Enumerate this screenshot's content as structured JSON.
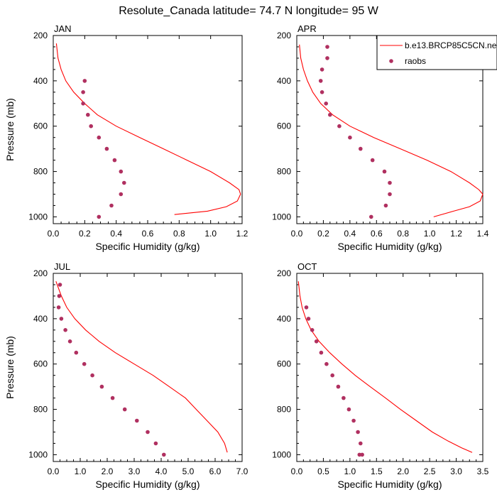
{
  "title": "Resolute_Canada  latitude= 74.7 N longitude= 95 W",
  "colors": {
    "model": "#ff0000",
    "raobs": "#b03060",
    "axis": "#000000"
  },
  "legend": {
    "placement": "top-right",
    "model_label": "b.e13.BRCP85C5CN.ne",
    "raobs_label": "raobs"
  },
  "chart_data": [
    {
      "type": "line",
      "panel": "JAN",
      "xlabel": "Specific Humidity (g/kg)",
      "ylabel": "Pressure (mb)",
      "xlim": [
        0,
        1.2
      ],
      "ylim": [
        1030,
        200
      ],
      "y_reversed": true,
      "xticks": [
        "0.0",
        "0.2",
        "0.4",
        "0.6",
        "0.8",
        "1.0",
        "1.2"
      ],
      "yticks": [
        "200",
        "400",
        "600",
        "800",
        "1000"
      ],
      "series": [
        {
          "name": "b.e13.BRCP85C5CN.ne",
          "kind": "line",
          "x": [
            0.02,
            0.03,
            0.05,
            0.08,
            0.13,
            0.2,
            0.28,
            0.4,
            0.55,
            0.7,
            0.85,
            1.0,
            1.12,
            1.18,
            1.19,
            1.17,
            1.1,
            0.98,
            0.77
          ],
          "y": [
            235,
            300,
            350,
            400,
            450,
            500,
            550,
            600,
            650,
            700,
            750,
            800,
            850,
            880,
            900,
            930,
            955,
            975,
            990
          ]
        },
        {
          "name": "raobs",
          "kind": "points",
          "x": [
            0.2,
            0.19,
            0.19,
            0.22,
            0.24,
            0.29,
            0.34,
            0.39,
            0.43,
            0.45,
            0.43,
            0.37,
            0.29
          ],
          "y": [
            400,
            450,
            500,
            550,
            600,
            650,
            700,
            750,
            800,
            850,
            900,
            950,
            1000
          ]
        }
      ]
    },
    {
      "type": "line",
      "panel": "APR",
      "xlabel": "Specific Humidity (g/kg)",
      "ylabel": "",
      "xlim": [
        0,
        1.4
      ],
      "ylim": [
        1030,
        200
      ],
      "y_reversed": true,
      "xticks": [
        "0.0",
        "0.2",
        "0.4",
        "0.6",
        "0.8",
        "1.0",
        "1.2",
        "1.4"
      ],
      "yticks": [
        "200",
        "400",
        "600",
        "800",
        "1000"
      ],
      "series": [
        {
          "name": "b.e13.BRCP85C5CN.ne",
          "kind": "line",
          "x": [
            0.02,
            0.03,
            0.05,
            0.08,
            0.12,
            0.18,
            0.27,
            0.4,
            0.58,
            0.78,
            0.98,
            1.16,
            1.3,
            1.37,
            1.4,
            1.38,
            1.3,
            1.18,
            1.03
          ],
          "y": [
            240,
            300,
            350,
            400,
            450,
            500,
            550,
            600,
            650,
            700,
            750,
            800,
            850,
            880,
            900,
            930,
            955,
            975,
            1000
          ]
        },
        {
          "name": "raobs",
          "kind": "points",
          "x": [
            0.23,
            0.23,
            0.19,
            0.18,
            0.19,
            0.22,
            0.25,
            0.32,
            0.4,
            0.48,
            0.57,
            0.66,
            0.7,
            0.7,
            0.67,
            0.56
          ],
          "y": [
            250,
            300,
            350,
            400,
            450,
            500,
            550,
            600,
            650,
            700,
            750,
            800,
            850,
            900,
            950,
            1000
          ]
        }
      ]
    },
    {
      "type": "line",
      "panel": "JUL",
      "xlabel": "Specific Humidity (g/kg)",
      "ylabel": "Pressure (mb)",
      "xlim": [
        0,
        7.0
      ],
      "ylim": [
        1030,
        200
      ],
      "y_reversed": true,
      "xticks": [
        "0.0",
        "1.0",
        "2.0",
        "3.0",
        "4.0",
        "5.0",
        "6.0",
        "7.0"
      ],
      "yticks": [
        "200",
        "400",
        "600",
        "800",
        "1000"
      ],
      "series": [
        {
          "name": "b.e13.BRCP85C5CN.ne",
          "kind": "line",
          "x": [
            0.1,
            0.3,
            0.5,
            0.8,
            1.2,
            1.7,
            2.3,
            3.0,
            3.7,
            4.3,
            4.9,
            5.3,
            5.7,
            6.1,
            6.35,
            6.45
          ],
          "y": [
            235,
            300,
            350,
            400,
            450,
            500,
            550,
            600,
            650,
            700,
            750,
            800,
            850,
            900,
            950,
            990
          ]
        },
        {
          "name": "raobs",
          "kind": "points",
          "x": [
            0.25,
            0.22,
            0.2,
            0.3,
            0.45,
            0.62,
            0.85,
            1.15,
            1.45,
            1.8,
            2.2,
            2.65,
            3.1,
            3.5,
            3.8,
            4.1
          ],
          "y": [
            250,
            300,
            350,
            400,
            450,
            500,
            550,
            600,
            650,
            700,
            750,
            800,
            850,
            900,
            950,
            1000
          ]
        }
      ]
    },
    {
      "type": "line",
      "panel": "OCT",
      "xlabel": "Specific Humidity (g/kg)",
      "ylabel": "",
      "xlim": [
        0,
        3.5
      ],
      "ylim": [
        1030,
        200
      ],
      "y_reversed": true,
      "xticks": [
        "0.0",
        "0.5",
        "1.0",
        "1.5",
        "2.0",
        "2.5",
        "3.0",
        "3.5"
      ],
      "yticks": [
        "200",
        "400",
        "600",
        "800",
        "1000"
      ],
      "series": [
        {
          "name": "b.e13.BRCP85C5CN.ne",
          "kind": "line",
          "x": [
            0.03,
            0.06,
            0.1,
            0.17,
            0.27,
            0.42,
            0.62,
            0.85,
            1.1,
            1.38,
            1.67,
            1.95,
            2.25,
            2.55,
            2.85,
            3.1,
            3.3
          ],
          "y": [
            235,
            300,
            350,
            400,
            450,
            500,
            550,
            600,
            650,
            700,
            750,
            800,
            850,
            900,
            940,
            970,
            990
          ]
        },
        {
          "name": "raobs",
          "kind": "points",
          "x": [
            0.18,
            0.22,
            0.29,
            0.37,
            0.46,
            0.56,
            0.67,
            0.78,
            0.88,
            0.98,
            1.07,
            1.15,
            1.2,
            1.23,
            1.18
          ],
          "y": [
            350,
            400,
            450,
            500,
            550,
            600,
            650,
            700,
            750,
            800,
            850,
            900,
            950,
            1000,
            1000
          ]
        }
      ]
    }
  ]
}
